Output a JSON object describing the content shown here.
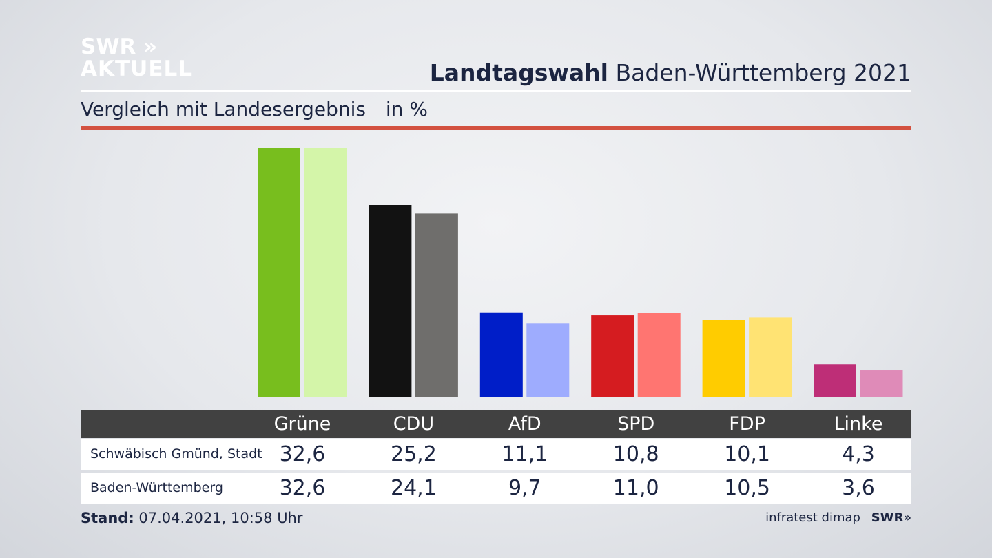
{
  "logo": {
    "line1": "SWR »",
    "line2": "AKTUELL"
  },
  "header": {
    "title_bold": "Landtagswahl",
    "title_rest": "Baden-Württemberg 2021",
    "subtitle": "Vergleich mit Landesergebnis",
    "unit": "in %"
  },
  "chart_data": {
    "type": "bar",
    "categories": [
      "Grüne",
      "CDU",
      "AfD",
      "SPD",
      "FDP",
      "Linke"
    ],
    "series": [
      {
        "name": "Schwäbisch Gmünd, Stadt",
        "values": [
          32.6,
          25.2,
          11.1,
          10.8,
          10.1,
          4.3
        ],
        "labels": [
          "32,6",
          "25,2",
          "11,1",
          "10,8",
          "10,1",
          "4,3"
        ],
        "colors": [
          "#78be1e",
          "#121212",
          "#001ec8",
          "#d51c20",
          "#ffcc00",
          "#be2e77"
        ]
      },
      {
        "name": "Baden-Württemberg",
        "values": [
          32.6,
          24.1,
          9.7,
          11.0,
          10.5,
          3.6
        ],
        "labels": [
          "32,6",
          "24,1",
          "9,7",
          "11,0",
          "10,5",
          "3,6"
        ],
        "colors": [
          "#d4f5a9",
          "#6f6e6c",
          "#9eacfe",
          "#ff7571",
          "#ffe373",
          "#df8bb8"
        ]
      }
    ],
    "ylim": [
      0,
      32.6
    ],
    "grid": false,
    "legend": "table-below"
  },
  "footer": {
    "stand_label": "Stand:",
    "stand_value": "07.04.2021, 10:58 Uhr",
    "source": "infratest dimap",
    "source_logo": "SWR»"
  }
}
